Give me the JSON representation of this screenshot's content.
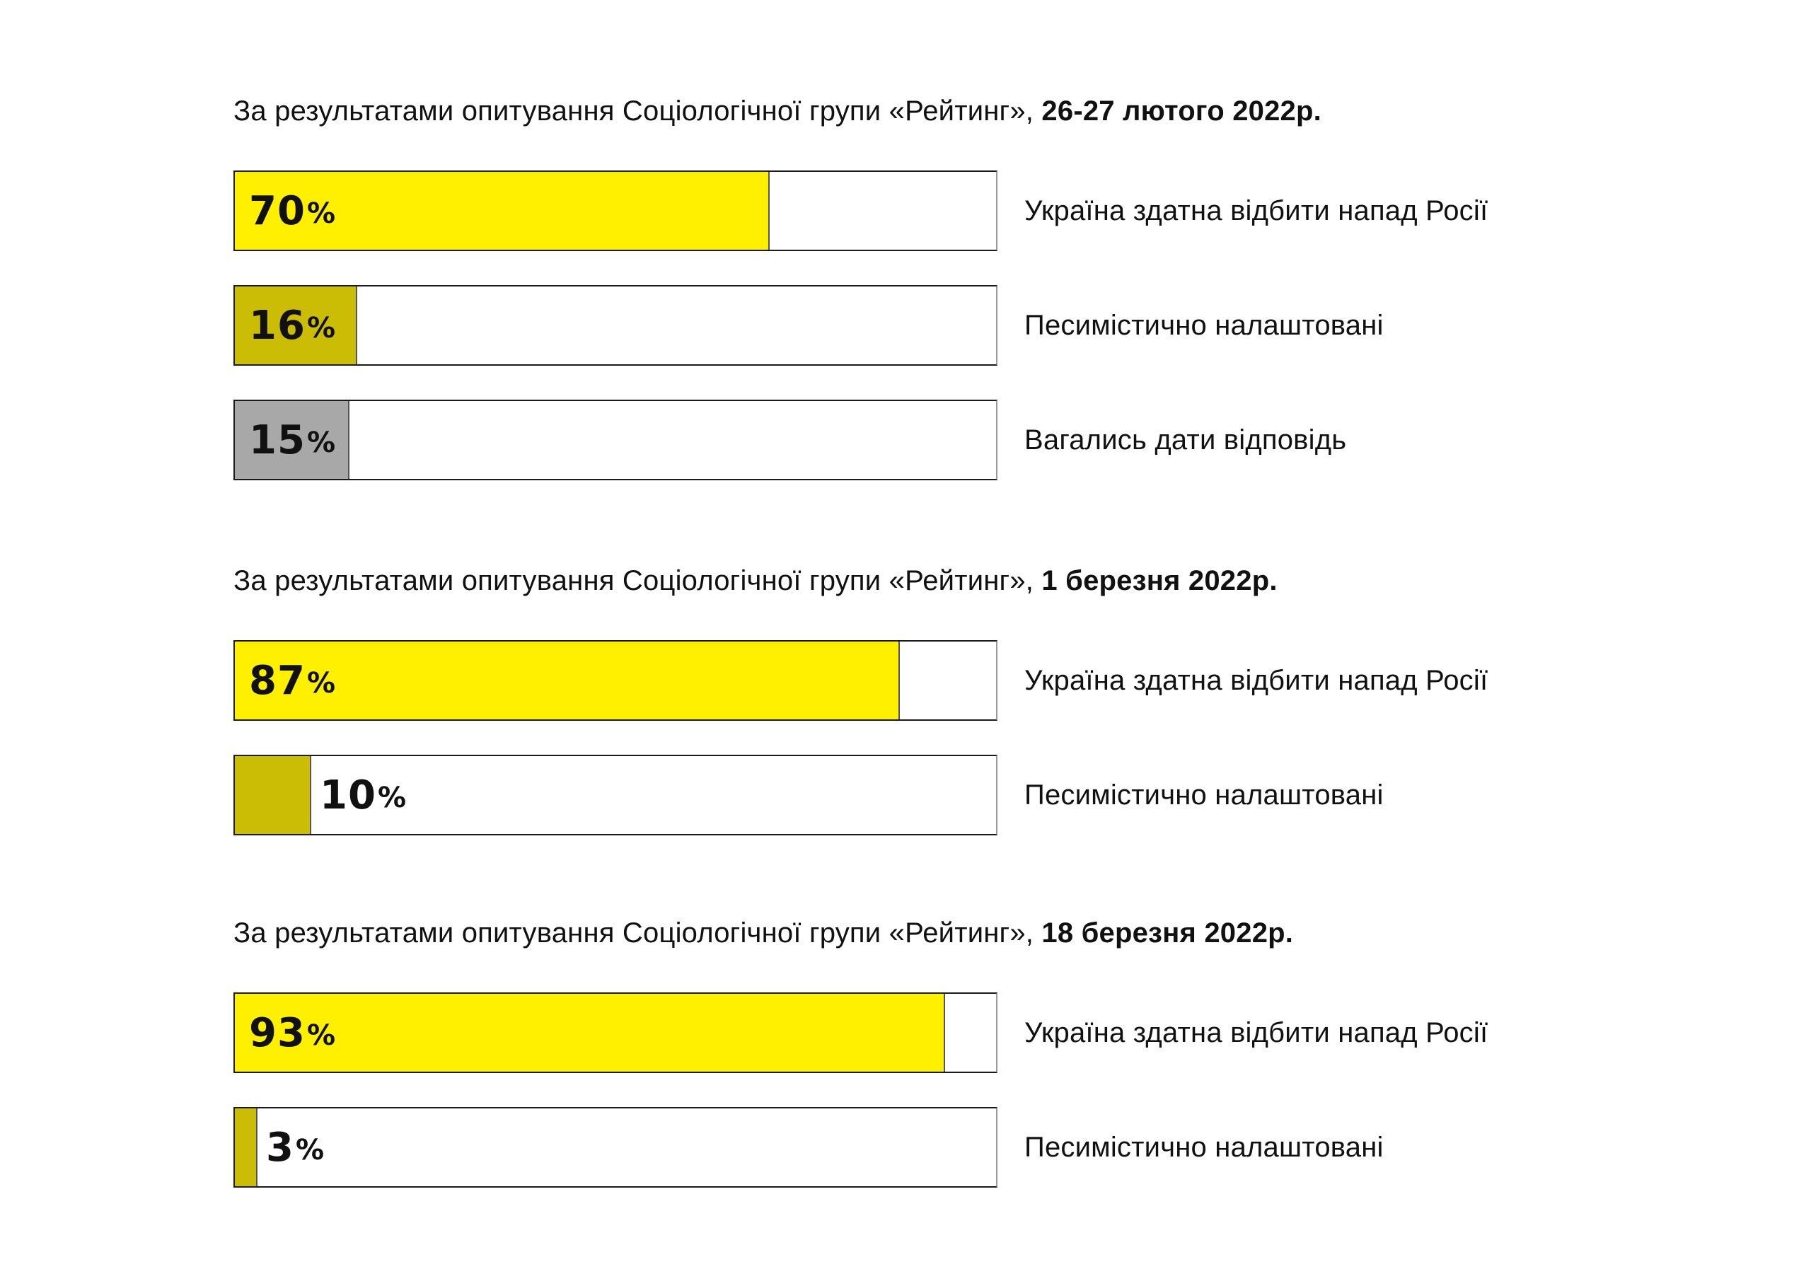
{
  "colors": {
    "optimistic": "#fff000",
    "pessimistic": "#cbbd05",
    "undecided": "#a8a8a8"
  },
  "chart_data": [
    {
      "type": "bar",
      "title_prefix": "За результатами опитування Соціологічної групи «Рейтинг»,",
      "title_date": "26-27 лютого 2022р.",
      "xlim": [
        0,
        100
      ],
      "categories": [
        "Україна здатна відбити напад Росії",
        "Песимістично налаштовані",
        "Вагались дати відповідь"
      ],
      "values": [
        70,
        16,
        15
      ],
      "value_labels": [
        "70",
        "16",
        "15"
      ],
      "percent_sign": "%",
      "bar_colors": [
        "optimistic",
        "pessimistic",
        "undecided"
      ]
    },
    {
      "type": "bar",
      "title_prefix": "За результатами опитування Соціологічної групи «Рейтинг»,",
      "title_date": "1 березня 2022р.",
      "xlim": [
        0,
        100
      ],
      "categories": [
        "Україна здатна відбити напад Росії",
        "Песимістично налаштовані"
      ],
      "values": [
        87,
        10
      ],
      "value_labels": [
        "87",
        "10"
      ],
      "percent_sign": "%",
      "bar_colors": [
        "optimistic",
        "pessimistic"
      ]
    },
    {
      "type": "bar",
      "title_prefix": "За результатами опитування Соціологічної групи «Рейтинг»,",
      "title_date": "18 березня 2022р.",
      "xlim": [
        0,
        100
      ],
      "categories": [
        "Україна здатна відбити напад Росії",
        "Песимістично налаштовані"
      ],
      "values": [
        93,
        3
      ],
      "value_labels": [
        "93",
        "3"
      ],
      "percent_sign": "%",
      "bar_colors": [
        "optimistic",
        "pessimistic"
      ]
    }
  ]
}
